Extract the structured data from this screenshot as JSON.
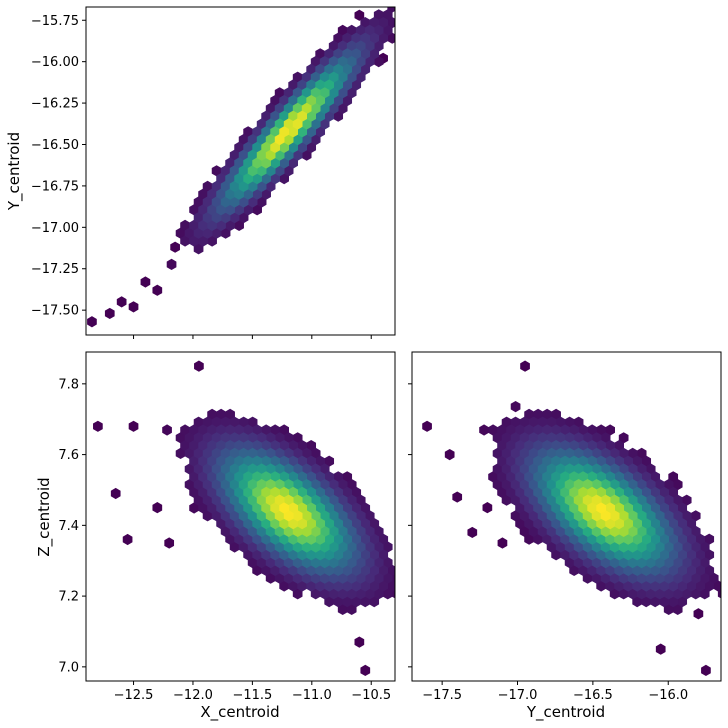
{
  "chart_data": [
    {
      "type": "hexbin",
      "panel": "top-left",
      "xlabel": "",
      "ylabel": "Y_centroid",
      "xlim": [
        -12.9,
        -10.3
      ],
      "ylim": [
        -17.65,
        -15.67
      ],
      "xticks": [
        -12.5,
        -12.0,
        -11.5,
        -11.0,
        -10.5
      ],
      "xtick_labels_shown": false,
      "yticks": [
        -17.5,
        -17.25,
        -17.0,
        -16.75,
        -16.5,
        -16.25,
        -16.0,
        -15.75
      ],
      "ytick_labels": [
        "−17.50",
        "−17.25",
        "−17.00",
        "−16.75",
        "−16.50",
        "−16.25",
        "−16.00",
        "−15.75"
      ],
      "colormap": "viridis",
      "density_peak": {
        "x": -11.2,
        "y": -16.42
      },
      "correlation": 0.93,
      "spread": {
        "x_sd": 0.33,
        "y_sd": 0.27
      },
      "outliers": [
        {
          "x": -12.85,
          "y": -17.57
        },
        {
          "x": -12.7,
          "y": -17.52
        },
        {
          "x": -12.6,
          "y": -17.45
        },
        {
          "x": -12.5,
          "y": -17.48
        },
        {
          "x": -12.4,
          "y": -17.33
        },
        {
          "x": -12.3,
          "y": -17.38
        },
        {
          "x": -12.15,
          "y": -17.12
        },
        {
          "x": -10.6,
          "y": -15.72
        },
        {
          "x": -10.5,
          "y": -15.8
        },
        {
          "x": -10.4,
          "y": -15.98
        },
        {
          "x": -10.75,
          "y": -15.85
        }
      ]
    },
    {
      "type": "hexbin",
      "panel": "bottom-left",
      "xlabel": "X_centroid",
      "ylabel": "Z_centroid",
      "xlim": [
        -12.9,
        -10.3
      ],
      "ylim": [
        6.96,
        7.89
      ],
      "xticks": [
        -12.5,
        -12.0,
        -11.5,
        -11.0,
        -10.5
      ],
      "xtick_labels": [
        "−12.5",
        "−12.0",
        "−11.5",
        "−11.0",
        "−10.5"
      ],
      "yticks": [
        7.0,
        7.2,
        7.4,
        7.6,
        7.8
      ],
      "ytick_labels": [
        "7.0",
        "7.2",
        "7.4",
        "7.6",
        "7.8"
      ],
      "colormap": "viridis",
      "density_peak": {
        "x": -11.2,
        "y": 7.44
      },
      "correlation": -0.62,
      "spread": {
        "x_sd": 0.33,
        "y_sd": 0.1
      },
      "outliers": [
        {
          "x": -12.8,
          "y": 7.68
        },
        {
          "x": -12.65,
          "y": 7.49
        },
        {
          "x": -12.5,
          "y": 7.68
        },
        {
          "x": -12.55,
          "y": 7.36
        },
        {
          "x": -12.3,
          "y": 7.45
        },
        {
          "x": -12.2,
          "y": 7.35
        },
        {
          "x": -11.95,
          "y": 7.85
        },
        {
          "x": -10.45,
          "y": 7.25
        },
        {
          "x": -10.55,
          "y": 6.99
        },
        {
          "x": -10.6,
          "y": 7.07
        }
      ]
    },
    {
      "type": "hexbin",
      "panel": "bottom-right",
      "xlabel": "Y_centroid",
      "ylabel": "",
      "xlim": [
        -17.7,
        -15.65
      ],
      "ylim": [
        6.96,
        7.89
      ],
      "xticks": [
        -17.5,
        -17.0,
        -16.5,
        -16.0
      ],
      "xtick_labels": [
        "−17.5",
        "−17.0",
        "−16.5",
        "−16.0"
      ],
      "yticks": [
        7.0,
        7.2,
        7.4,
        7.6,
        7.8
      ],
      "ytick_labels_shown": false,
      "colormap": "viridis",
      "density_peak": {
        "x": -16.43,
        "y": 7.44
      },
      "correlation": -0.6,
      "spread": {
        "x_sd": 0.27,
        "y_sd": 0.1
      },
      "outliers": [
        {
          "x": -17.6,
          "y": 7.68
        },
        {
          "x": -17.45,
          "y": 7.6
        },
        {
          "x": -17.4,
          "y": 7.48
        },
        {
          "x": -17.3,
          "y": 7.38
        },
        {
          "x": -17.2,
          "y": 7.45
        },
        {
          "x": -17.1,
          "y": 7.35
        },
        {
          "x": -16.95,
          "y": 7.85
        },
        {
          "x": -15.75,
          "y": 6.99
        },
        {
          "x": -15.8,
          "y": 7.15
        },
        {
          "x": -16.05,
          "y": 7.05
        }
      ]
    }
  ]
}
